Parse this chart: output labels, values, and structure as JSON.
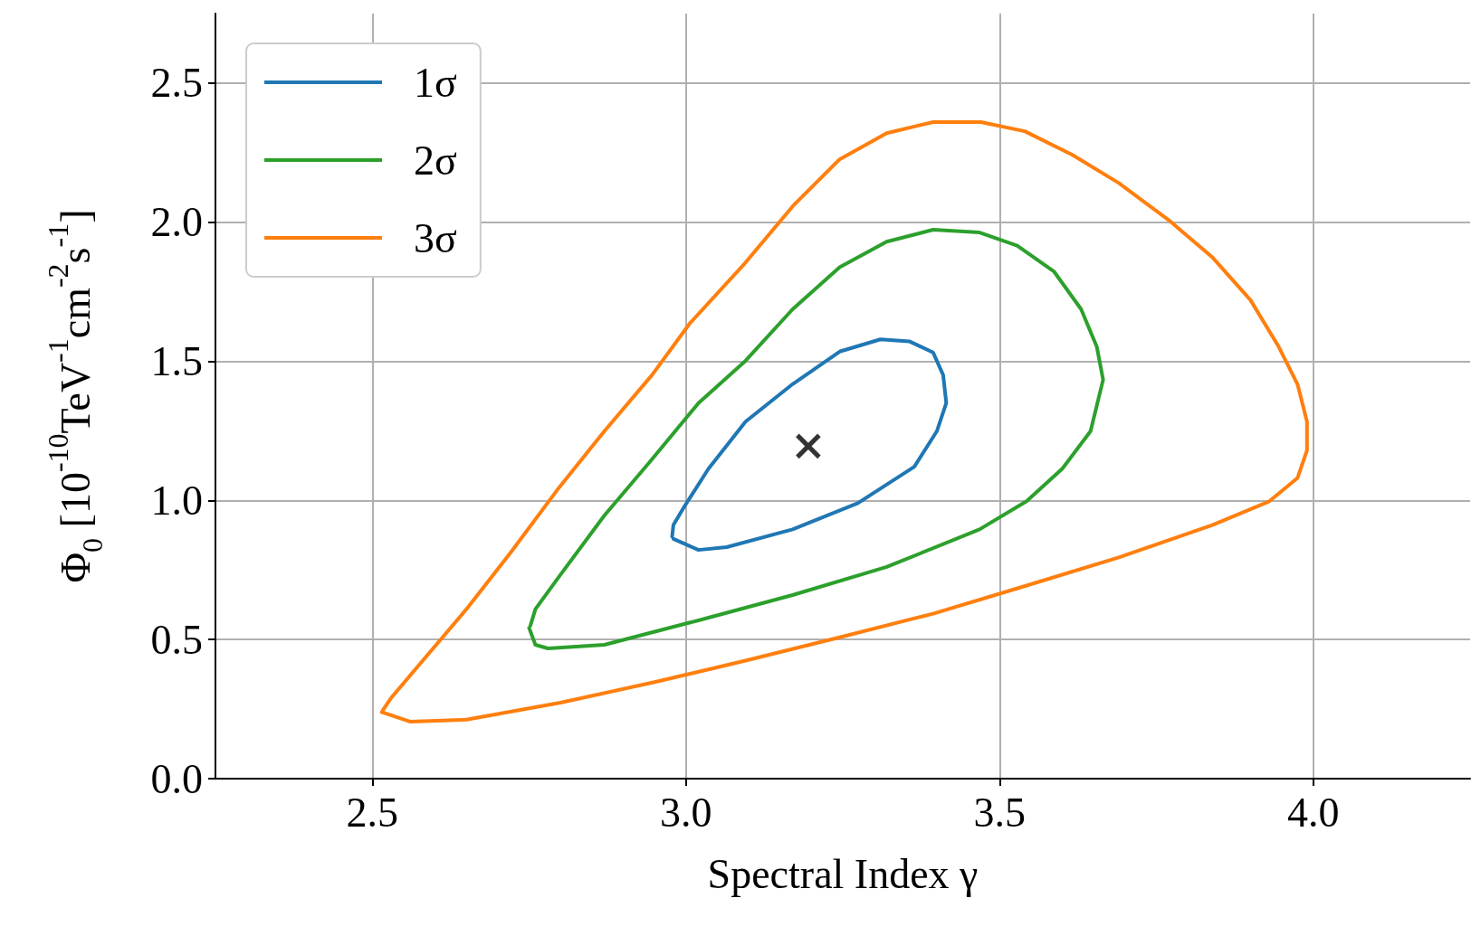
{
  "chart_data": {
    "type": "line",
    "xlabel": "Spectral Index γ",
    "ylabel": "Φ$_{0}$ [10$^{-10}$TeV$^{-1}$cm$^{-2}$s$^{-1}$]",
    "xlim": [
      2.25,
      4.25
    ],
    "ylim": [
      0,
      2.75
    ],
    "xticks": [
      2.5,
      {
        "value": 3,
        "label": "3.0"
      },
      3.5,
      {
        "value": 4,
        "label": "4.0"
      }
    ],
    "yticks": [
      {
        "value": 0,
        "label": "0.0"
      },
      {
        "value": 0.5,
        "label": "0.5"
      },
      {
        "value": 1,
        "label": "1.0"
      },
      {
        "value": 1.5,
        "label": "1.5"
      },
      {
        "value": 2,
        "label": "2.0"
      },
      {
        "value": 2.5,
        "label": "2.5"
      }
    ],
    "grid": true,
    "legend": "top left",
    "marker": "none",
    "line_style": "solid",
    "series": [
      {
        "name": "1σ",
        "color": "#1f77b4",
        "x": [
          2.98,
          3.02,
          3.065,
          3.17,
          3.274,
          3.364,
          3.4,
          3.415,
          3.41,
          3.394,
          3.356,
          3.31,
          3.245,
          3.17,
          3.095,
          3.036,
          2.998,
          2.98,
          2.978
        ],
        "values": [
          0.862,
          0.822,
          0.832,
          0.896,
          0.99,
          1.121,
          1.249,
          1.35,
          1.451,
          1.532,
          1.572,
          1.579,
          1.535,
          1.418,
          1.283,
          1.114,
          0.98,
          0.912,
          0.87
        ]
      },
      {
        "name": "2σ",
        "color": "#2ca02c",
        "x": [
          2.75,
          2.76,
          2.78,
          2.87,
          3.02,
          3.17,
          3.32,
          3.468,
          3.543,
          3.6,
          3.645,
          3.665,
          3.655,
          3.63,
          3.587,
          3.528,
          3.468,
          3.394,
          3.32,
          3.245,
          3.17,
          3.095,
          3.02,
          2.946,
          2.87,
          2.798,
          2.76,
          2.752
        ],
        "values": [
          0.542,
          0.481,
          0.468,
          0.481,
          0.569,
          0.66,
          0.761,
          0.896,
          0.997,
          1.114,
          1.249,
          1.434,
          1.552,
          1.687,
          1.822,
          1.916,
          1.963,
          1.973,
          1.93,
          1.838,
          1.687,
          1.502,
          1.35,
          1.148,
          0.946,
          0.727,
          0.609,
          0.55
        ]
      },
      {
        "name": "3σ",
        "color": "#ff7f0e",
        "x": [
          2.515,
          2.56,
          2.65,
          2.8,
          2.95,
          3.095,
          3.245,
          3.394,
          3.543,
          3.69,
          3.84,
          3.93,
          3.975,
          3.99,
          3.99,
          3.975,
          3.945,
          3.9,
          3.84,
          3.77,
          3.69,
          3.616,
          3.54,
          3.47,
          3.394,
          3.32,
          3.245,
          3.17,
          3.095,
          3.006,
          2.946,
          2.87,
          2.798,
          2.72,
          2.65,
          2.574,
          2.53,
          2.517
        ],
        "values": [
          0.239,
          0.205,
          0.212,
          0.273,
          0.347,
          0.424,
          0.508,
          0.593,
          0.694,
          0.795,
          0.912,
          0.997,
          1.081,
          1.18,
          1.283,
          1.417,
          1.552,
          1.72,
          1.872,
          2.007,
          2.141,
          2.242,
          2.327,
          2.36,
          2.36,
          2.32,
          2.226,
          2.057,
          1.855,
          1.636,
          1.451,
          1.249,
          1.047,
          0.811,
          0.609,
          0.407,
          0.29,
          0.247
        ]
      },
      {
        "type": "scatter",
        "marker": "cross",
        "color": "#000000",
        "x": [
          3.195
        ],
        "values": [
          1.195
        ]
      }
    ]
  }
}
